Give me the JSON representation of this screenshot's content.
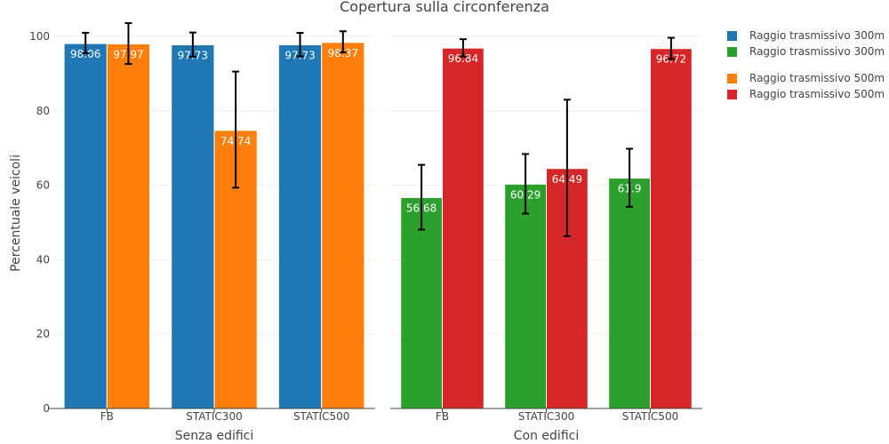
{
  "chart_data": {
    "type": "bar",
    "title": "Copertura sulla circonferenza",
    "ylabel": "Percentuale veicoli",
    "ylim": [
      0,
      105
    ],
    "yticks": [
      0,
      20,
      40,
      60,
      80,
      100
    ],
    "categories": [
      "FB",
      "STATIC300",
      "STATIC500"
    ],
    "panels": [
      {
        "xlabel": "Senza edifici",
        "series": [
          {
            "name": "Raggio trasmissivo 300m",
            "color": "#1f77b4",
            "values": [
              98.06,
              97.73,
              97.73
            ],
            "labels": [
              "98.06",
              "97.73",
              "97.73"
            ],
            "err_plus": [
              2.9,
              3.3,
              3.2
            ],
            "err_minus": [
              2.6,
              3.2,
              3.1
            ]
          },
          {
            "name": "Raggio trasmissivo 500m",
            "color": "#ff7f0e",
            "values": [
              97.97,
              74.74,
              98.37
            ],
            "labels": [
              "97.97",
              "74.74",
              "98.37"
            ],
            "err_plus": [
              5.6,
              15.8,
              3.0
            ],
            "err_minus": [
              5.4,
              15.4,
              2.7
            ]
          }
        ]
      },
      {
        "xlabel": "Con edifici",
        "series": [
          {
            "name": "Raggio trasmissivo 300m",
            "color": "#2ca02c",
            "values": [
              56.68,
              60.29,
              61.9
            ],
            "labels": [
              "56.68",
              "60.29",
              "61.9"
            ],
            "err_plus": [
              8.8,
              8.1,
              7.9
            ],
            "err_minus": [
              8.6,
              7.9,
              7.7
            ]
          },
          {
            "name": "Raggio trasmissivo 500m",
            "color": "#d62728",
            "values": [
              96.84,
              64.49,
              96.72
            ],
            "labels": [
              "96.84",
              "64.49",
              "96.72"
            ],
            "err_plus": [
              2.4,
              18.5,
              2.9
            ],
            "err_minus": [
              2.3,
              18.2,
              2.8
            ]
          }
        ]
      }
    ],
    "legend": [
      {
        "label": "Raggio trasmissivo 300m",
        "color": "#1f77b4"
      },
      {
        "label": "Raggio trasmissivo 300m",
        "color": "#2ca02c"
      },
      {
        "label": "Raggio trasmissivo 500m",
        "color": "#ff7f0e"
      },
      {
        "label": "Raggio trasmissivo 500m",
        "color": "#d62728"
      }
    ],
    "grid": true,
    "legend_position": "top-right"
  }
}
